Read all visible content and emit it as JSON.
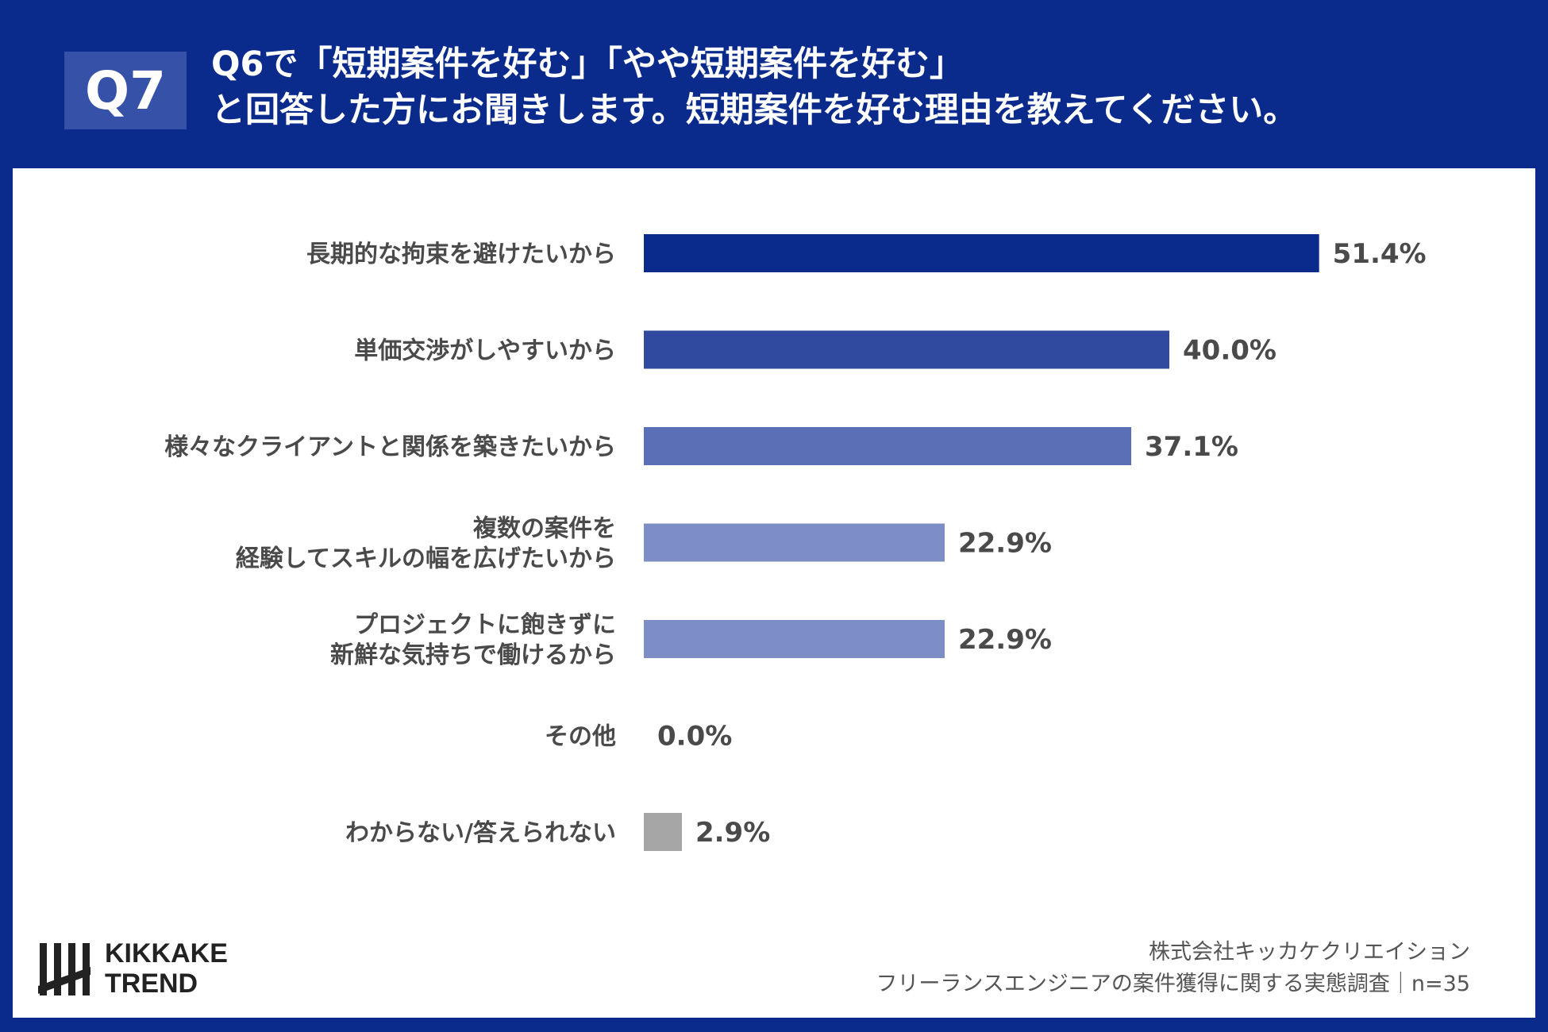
{
  "header": {
    "badge": "Q7",
    "title_line1": "Q6で「短期案件を好む」「やや短期案件を好む」",
    "title_line2": "と回答した方にお聞きします。短期案件を好む理由を教えてください。"
  },
  "chart_data": {
    "type": "bar",
    "orientation": "horizontal",
    "categories": [
      [
        "長期的な拘束を避けたいから"
      ],
      [
        "単価交渉がしやすいから"
      ],
      [
        "様々なクライアントと関係を築きたいから"
      ],
      [
        "複数の案件を",
        "経験してスキルの幅を広げたいから"
      ],
      [
        "プロジェクトに飽きずに",
        "新鮮な気持ちで働けるから"
      ],
      [
        "その他"
      ],
      [
        "わからない/答えられない"
      ]
    ],
    "values": [
      51.4,
      40.0,
      37.1,
      22.9,
      22.9,
      0.0,
      2.9
    ],
    "value_labels": [
      "51.4%",
      "40.0%",
      "37.1%",
      "22.9%",
      "22.9%",
      "0.0%",
      "2.9%"
    ],
    "colors": [
      "#0a2a8c",
      "#2f4a9e",
      "#5a6fb5",
      "#7d8ec6",
      "#7d8ec6",
      "#7d8ec6",
      "#a6a6a6"
    ],
    "unit": "%",
    "grid": false,
    "legend": "none"
  },
  "brand": {
    "logo_line1": "KIKKAKE",
    "logo_line2": "TREND"
  },
  "source": {
    "line1": "株式会社キッカケクリエイション",
    "line2": "フリーランスエンジニアの案件獲得に関する実態調査｜n=35"
  }
}
